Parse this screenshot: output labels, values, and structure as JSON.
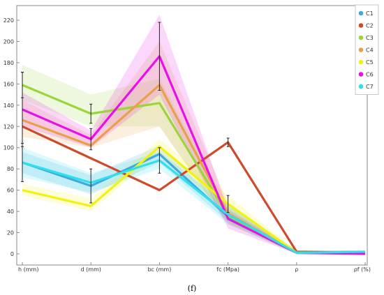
{
  "chart_data": {
    "type": "line",
    "categories": [
      "h (mm)",
      "d (mm)",
      "bc (mm)",
      "fc (Mpa)",
      "ρ",
      "ρf (%)"
    ],
    "ylim": [
      0,
      230
    ],
    "yticks": [
      0,
      20,
      40,
      60,
      80,
      100,
      120,
      140,
      160,
      180,
      200,
      220
    ],
    "legend_position": "top-right",
    "grid": false,
    "series": [
      {
        "name": "C1",
        "color": "#3fa9e0",
        "values": [
          86,
          64,
          94,
          35,
          1,
          1
        ],
        "band_low": [
          76,
          56,
          86,
          30,
          0,
          0
        ],
        "band_high": [
          96,
          74,
          102,
          40,
          3,
          3
        ],
        "error": [
          18,
          16,
          0,
          0,
          0,
          0
        ]
      },
      {
        "name": "C2",
        "color": "#cf4a2b",
        "values": [
          120,
          90,
          60,
          105,
          2,
          1
        ],
        "band_low": [
          120,
          90,
          60,
          105,
          2,
          1
        ],
        "band_high": [
          120,
          90,
          60,
          105,
          2,
          1
        ],
        "error": [
          0,
          0,
          0,
          4,
          0,
          0
        ]
      },
      {
        "name": "C3",
        "color": "#9bd53a",
        "values": [
          159,
          132,
          142,
          36,
          1,
          1
        ],
        "band_low": [
          145,
          120,
          120,
          28,
          0,
          0
        ],
        "band_high": [
          178,
          150,
          165,
          45,
          3,
          3
        ],
        "error": [
          12,
          9,
          0,
          0,
          0,
          0
        ]
      },
      {
        "name": "C4",
        "color": "#e8a04a",
        "values": [
          126,
          102,
          159,
          38,
          1,
          1
        ],
        "band_low": [
          110,
          100,
          120,
          28,
          0,
          0
        ],
        "band_high": [
          145,
          112,
          200,
          48,
          3,
          3
        ],
        "error": [
          0,
          0,
          0,
          0,
          0,
          0
        ]
      },
      {
        "name": "C5",
        "color": "#f2f20f",
        "values": [
          60,
          45,
          101,
          47,
          1,
          1
        ],
        "band_low": [
          55,
          40,
          95,
          40,
          0,
          0
        ],
        "band_high": [
          66,
          52,
          108,
          55,
          3,
          3
        ],
        "error": [
          0,
          0,
          0,
          8,
          0,
          0
        ]
      },
      {
        "name": "C6",
        "color": "#e80fe8",
        "values": [
          136,
          108,
          186,
          33,
          1,
          0
        ],
        "band_low": [
          120,
          100,
          150,
          24,
          0,
          0
        ],
        "band_high": [
          152,
          116,
          225,
          42,
          3,
          3
        ],
        "error": [
          35,
          10,
          32,
          0,
          0,
          0
        ]
      },
      {
        "name": "C7",
        "color": "#2fe0ea",
        "values": [
          86,
          67,
          88,
          37,
          1,
          2
        ],
        "band_low": [
          72,
          58,
          80,
          28,
          0,
          0
        ],
        "band_high": [
          100,
          76,
          96,
          46,
          3,
          3
        ],
        "error": [
          0,
          0,
          12,
          0,
          0,
          0
        ]
      }
    ]
  },
  "caption": "(f)"
}
